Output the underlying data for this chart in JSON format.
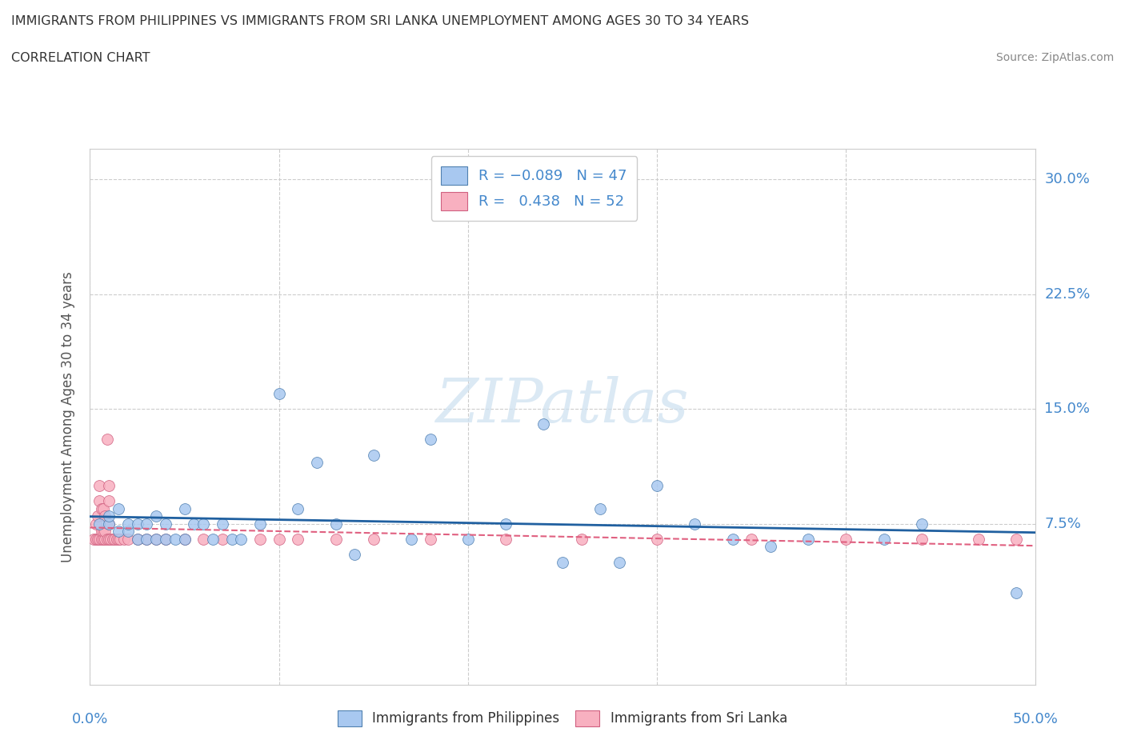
{
  "title_line1": "IMMIGRANTS FROM PHILIPPINES VS IMMIGRANTS FROM SRI LANKA UNEMPLOYMENT AMONG AGES 30 TO 34 YEARS",
  "title_line2": "CORRELATION CHART",
  "source_text": "Source: ZipAtlas.com",
  "ylabel": "Unemployment Among Ages 30 to 34 years",
  "xlim": [
    0.0,
    0.5
  ],
  "ylim": [
    -0.03,
    0.32
  ],
  "xticks": [
    0.0,
    0.1,
    0.2,
    0.3,
    0.4,
    0.5
  ],
  "xticklabels_left": "0.0%",
  "xticklabels_right": "50.0%",
  "ytick_vals": [
    0.075,
    0.15,
    0.225,
    0.3
  ],
  "yticklabels": [
    "7.5%",
    "15.0%",
    "22.5%",
    "30.0%"
  ],
  "philippines_color": "#a8c8f0",
  "srilanka_color": "#f8b0c0",
  "philippines_edge": "#5080b0",
  "srilanka_edge": "#d06080",
  "regression_philippines_color": "#2060a0",
  "regression_srilanka_color": "#e06080",
  "watermark_color": "#cce0f0",
  "watermark": "ZIPatlas",
  "philippines_x": [
    0.005,
    0.01,
    0.01,
    0.015,
    0.015,
    0.02,
    0.02,
    0.025,
    0.025,
    0.03,
    0.03,
    0.035,
    0.035,
    0.04,
    0.04,
    0.045,
    0.05,
    0.05,
    0.055,
    0.06,
    0.065,
    0.07,
    0.075,
    0.08,
    0.09,
    0.1,
    0.11,
    0.12,
    0.13,
    0.14,
    0.15,
    0.17,
    0.18,
    0.2,
    0.22,
    0.24,
    0.25,
    0.27,
    0.28,
    0.3,
    0.32,
    0.34,
    0.36,
    0.38,
    0.42,
    0.44,
    0.49
  ],
  "philippines_y": [
    0.075,
    0.075,
    0.08,
    0.07,
    0.085,
    0.07,
    0.075,
    0.065,
    0.075,
    0.065,
    0.075,
    0.065,
    0.08,
    0.065,
    0.075,
    0.065,
    0.065,
    0.085,
    0.075,
    0.075,
    0.065,
    0.075,
    0.065,
    0.065,
    0.075,
    0.16,
    0.085,
    0.115,
    0.075,
    0.055,
    0.12,
    0.065,
    0.13,
    0.065,
    0.075,
    0.14,
    0.05,
    0.085,
    0.05,
    0.1,
    0.075,
    0.065,
    0.06,
    0.065,
    0.065,
    0.075,
    0.03
  ],
  "srilanka_x": [
    0.002,
    0.003,
    0.003,
    0.004,
    0.004,
    0.005,
    0.005,
    0.005,
    0.006,
    0.006,
    0.006,
    0.007,
    0.007,
    0.007,
    0.008,
    0.008,
    0.008,
    0.009,
    0.009,
    0.01,
    0.01,
    0.01,
    0.01,
    0.011,
    0.012,
    0.013,
    0.014,
    0.015,
    0.016,
    0.018,
    0.02,
    0.025,
    0.03,
    0.035,
    0.04,
    0.05,
    0.06,
    0.07,
    0.09,
    0.1,
    0.11,
    0.13,
    0.15,
    0.18,
    0.22,
    0.26,
    0.3,
    0.35,
    0.4,
    0.44,
    0.47,
    0.49
  ],
  "srilanka_y": [
    0.065,
    0.065,
    0.075,
    0.065,
    0.08,
    0.065,
    0.09,
    0.1,
    0.065,
    0.07,
    0.085,
    0.065,
    0.07,
    0.085,
    0.065,
    0.07,
    0.08,
    0.065,
    0.13,
    0.065,
    0.075,
    0.09,
    0.1,
    0.065,
    0.065,
    0.065,
    0.065,
    0.065,
    0.065,
    0.065,
    0.065,
    0.065,
    0.065,
    0.065,
    0.065,
    0.065,
    0.065,
    0.065,
    0.065,
    0.065,
    0.065,
    0.065,
    0.065,
    0.065,
    0.065,
    0.065,
    0.065,
    0.065,
    0.065,
    0.065,
    0.065,
    0.065
  ],
  "grid_color": "#cccccc",
  "background_color": "#ffffff",
  "title_color": "#333333",
  "axis_label_color": "#4488cc",
  "tick_color": "#4488cc"
}
